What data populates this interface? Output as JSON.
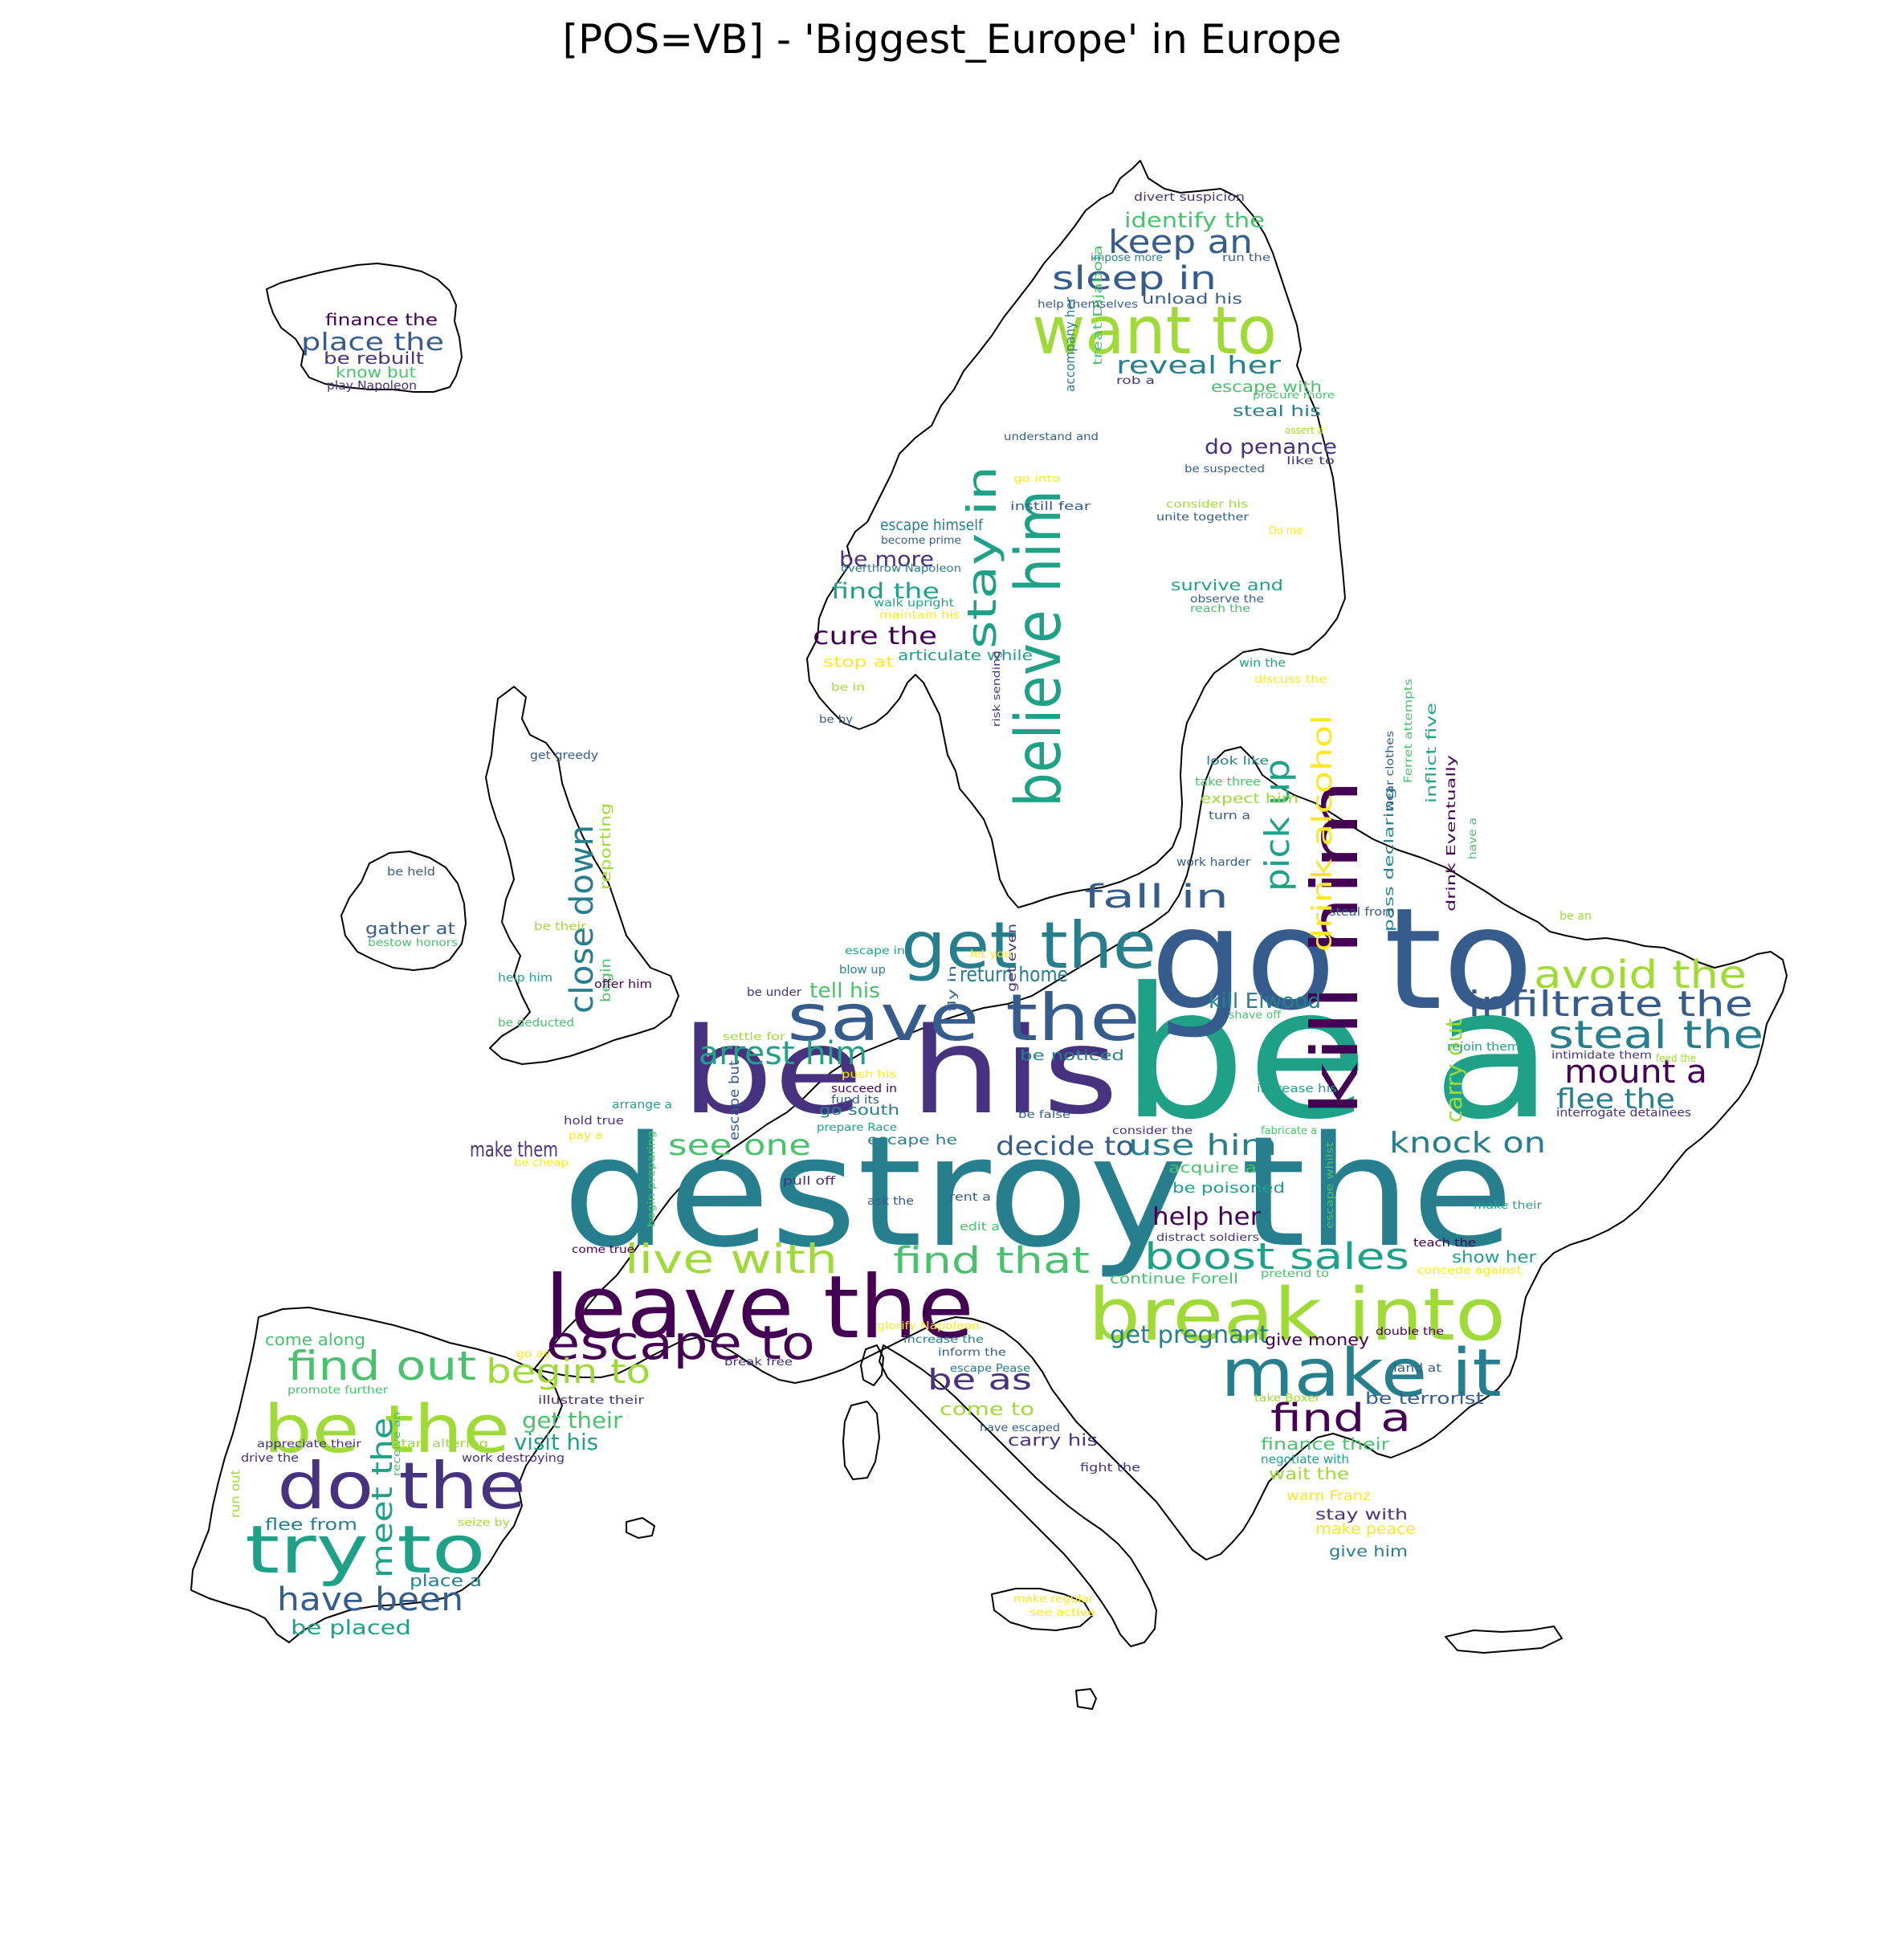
{
  "title": "[POS=VB] - 'Biggest_Europe' in Europe",
  "palette": [
    "#440154",
    "#46327e",
    "#365c8d",
    "#277f8e",
    "#1fa187",
    "#4ac16d",
    "#a0da39",
    "#fde725"
  ],
  "words": [
    {
      "text": "be a",
      "color": "#1fa187"
    },
    {
      "text": "destroy the",
      "color": "#277f8e"
    },
    {
      "text": "go to",
      "color": "#365c8d"
    },
    {
      "text": "be his",
      "color": "#46327e"
    },
    {
      "text": "leave the",
      "color": "#440154"
    },
    {
      "text": "break into",
      "color": "#a0da39"
    },
    {
      "text": "want to",
      "color": "#a0da39"
    },
    {
      "text": "believe him",
      "color": "#1fa187"
    },
    {
      "text": "save the",
      "color": "#365c8d"
    },
    {
      "text": "get the",
      "color": "#277f8e"
    },
    {
      "text": "kill him",
      "color": "#440154"
    },
    {
      "text": "make it",
      "color": "#277f8e"
    },
    {
      "text": "be the",
      "color": "#a0da39"
    },
    {
      "text": "do the",
      "color": "#46327e"
    },
    {
      "text": "try to",
      "color": "#1fa187"
    },
    {
      "text": "escape to",
      "color": "#440154"
    },
    {
      "text": "stay in",
      "color": "#1fa187"
    },
    {
      "text": "boost sales",
      "color": "#1fa187"
    },
    {
      "text": "live with",
      "color": "#a0da39"
    },
    {
      "text": "find that",
      "color": "#4ac16d"
    },
    {
      "text": "avoid the",
      "color": "#a0da39"
    },
    {
      "text": "infiltrate the",
      "color": "#365c8d"
    },
    {
      "text": "steal the",
      "color": "#277f8e"
    },
    {
      "text": "find out",
      "color": "#4ac16d"
    },
    {
      "text": "begin to",
      "color": "#a0da39"
    },
    {
      "text": "find a",
      "color": "#440154"
    },
    {
      "text": "pick up",
      "color": "#1fa187"
    },
    {
      "text": "drink alcohol",
      "color": "#fde725"
    },
    {
      "text": "close down",
      "color": "#277f8e"
    },
    {
      "text": "keep an",
      "color": "#365c8d"
    },
    {
      "text": "sleep in",
      "color": "#365c8d"
    },
    {
      "text": "arrest him",
      "color": "#1fa187"
    },
    {
      "text": "fall in",
      "color": "#365c8d"
    },
    {
      "text": "have been",
      "color": "#365c8d"
    },
    {
      "text": "meet the",
      "color": "#1fa187"
    },
    {
      "text": "mount a",
      "color": "#440154"
    },
    {
      "text": "flee the",
      "color": "#277f8e"
    },
    {
      "text": "knock on",
      "color": "#277f8e"
    },
    {
      "text": "use him",
      "color": "#277f8e"
    },
    {
      "text": "see one",
      "color": "#4ac16d"
    },
    {
      "text": "decide to",
      "color": "#365c8d"
    },
    {
      "text": "carry out",
      "color": "#a0da39"
    },
    {
      "text": "get pregnant",
      "color": "#277f8e"
    },
    {
      "text": "be as",
      "color": "#46327e"
    },
    {
      "text": "get their",
      "color": "#4ac16d"
    },
    {
      "text": "visit his",
      "color": "#1fa187"
    },
    {
      "text": "help her",
      "color": "#440154"
    },
    {
      "text": "kill Elwood",
      "color": "#277f8e"
    },
    {
      "text": "return home",
      "color": "#277f8e"
    },
    {
      "text": "tell his",
      "color": "#4ac16d"
    },
    {
      "text": "make them",
      "color": "#46327e"
    },
    {
      "text": "reveal her",
      "color": "#277f8e"
    },
    {
      "text": "identify the",
      "color": "#4ac16d"
    },
    {
      "text": "cure the",
      "color": "#440154"
    },
    {
      "text": "find the",
      "color": "#1fa187"
    },
    {
      "text": "be more",
      "color": "#46327e"
    },
    {
      "text": "do penance",
      "color": "#46327e"
    },
    {
      "text": "escape himself",
      "color": "#277f8e"
    },
    {
      "text": "place the",
      "color": "#365c8d"
    },
    {
      "text": "finance the",
      "color": "#440154"
    },
    {
      "text": "be rebuilt",
      "color": "#46327e"
    },
    {
      "text": "know but",
      "color": "#4ac16d"
    },
    {
      "text": "play Napoleon",
      "color": "#46327e"
    },
    {
      "text": "be placed",
      "color": "#1fa187"
    },
    {
      "text": "come along",
      "color": "#4ac16d"
    },
    {
      "text": "flee from",
      "color": "#277f8e"
    },
    {
      "text": "place a",
      "color": "#277f8e"
    },
    {
      "text": "come to",
      "color": "#a0da39"
    },
    {
      "text": "carry his",
      "color": "#46327e"
    },
    {
      "text": "give money",
      "color": "#440154"
    },
    {
      "text": "be terrorist",
      "color": "#365c8d"
    },
    {
      "text": "finance their",
      "color": "#4ac16d"
    },
    {
      "text": "wait the",
      "color": "#a0da39"
    },
    {
      "text": "stay with",
      "color": "#46327e"
    },
    {
      "text": "make peace",
      "color": "#fde725"
    },
    {
      "text": "give him",
      "color": "#277f8e"
    },
    {
      "text": "show her",
      "color": "#1fa187"
    },
    {
      "text": "gather at",
      "color": "#365c8d"
    },
    {
      "text": "be noticed",
      "color": "#277f8e"
    },
    {
      "text": "acquire a",
      "color": "#4ac16d"
    },
    {
      "text": "be poisoned",
      "color": "#1fa187"
    },
    {
      "text": "go south",
      "color": "#277f8e"
    },
    {
      "text": "continue Forell",
      "color": "#4ac16d"
    },
    {
      "text": "survive and",
      "color": "#1fa187"
    },
    {
      "text": "articulate while",
      "color": "#1fa187"
    },
    {
      "text": "steal his",
      "color": "#277f8e"
    },
    {
      "text": "escape with",
      "color": "#4ac16d"
    },
    {
      "text": "unload his",
      "color": "#365c8d"
    },
    {
      "text": "stop at",
      "color": "#fde725"
    },
    {
      "text": "warn Franz",
      "color": "#fde725"
    },
    {
      "text": "negotiate with",
      "color": "#1fa187"
    },
    {
      "text": "escape he",
      "color": "#277f8e"
    },
    {
      "text": "accompany her",
      "color": "#277f8e"
    },
    {
      "text": "treat Dijabola",
      "color": "#4ac16d"
    },
    {
      "text": "reporting",
      "color": "#a0da39"
    },
    {
      "text": "begin",
      "color": "#4ac16d"
    },
    {
      "text": "escape but",
      "color": "#365c8d"
    },
    {
      "text": "get even",
      "color": "#46327e"
    },
    {
      "text": "pass declaring",
      "color": "#277f8e"
    },
    {
      "text": "drink Eventually",
      "color": "#440154"
    },
    {
      "text": "inflict five",
      "color": "#1fa187"
    },
    {
      "text": "receive an",
      "color": "#4ac16d"
    },
    {
      "text": "run out",
      "color": "#a0da39"
    },
    {
      "text": "risk sending",
      "color": "#46327e"
    },
    {
      "text": "divert suspicion",
      "color": "#46327e"
    },
    {
      "text": "impose more",
      "color": "#277f8e"
    },
    {
      "text": "run the",
      "color": "#365c8d"
    },
    {
      "text": "help themselves",
      "color": "#365c8d"
    },
    {
      "text": "rob a",
      "color": "#46327e"
    },
    {
      "text": "procure more",
      "color": "#4ac16d"
    },
    {
      "text": "assert a",
      "color": "#a0da39"
    },
    {
      "text": "understand and",
      "color": "#365c8d"
    },
    {
      "text": "like to",
      "color": "#46327e"
    },
    {
      "text": "be suspected",
      "color": "#365c8d"
    },
    {
      "text": "go into",
      "color": "#fde725"
    },
    {
      "text": "instill fear",
      "color": "#365c8d"
    },
    {
      "text": "consider his",
      "color": "#a0da39"
    },
    {
      "text": "unite together",
      "color": "#365c8d"
    },
    {
      "text": "become prime",
      "color": "#365c8d"
    },
    {
      "text": "Do me",
      "color": "#fde725"
    },
    {
      "text": "overthrow Napoleon",
      "color": "#277f8e"
    },
    {
      "text": "walk upright",
      "color": "#1fa187"
    },
    {
      "text": "maintain his",
      "color": "#fde725"
    },
    {
      "text": "observe the",
      "color": "#365c8d"
    },
    {
      "text": "reach the",
      "color": "#4ac16d"
    },
    {
      "text": "win the",
      "color": "#1fa187"
    },
    {
      "text": "discuss the",
      "color": "#fde725"
    },
    {
      "text": "be in",
      "color": "#a0da39"
    },
    {
      "text": "be by",
      "color": "#365c8d"
    },
    {
      "text": "get greedy",
      "color": "#365c8d"
    },
    {
      "text": "look like",
      "color": "#277f8e"
    },
    {
      "text": "take three",
      "color": "#4ac16d"
    },
    {
      "text": "expect him",
      "color": "#a0da39"
    },
    {
      "text": "turn a",
      "color": "#365c8d"
    },
    {
      "text": "work harder",
      "color": "#365c8d"
    },
    {
      "text": "Ferret attempts",
      "color": "#4ac16d"
    },
    {
      "text": "wear clothes",
      "color": "#365c8d"
    },
    {
      "text": "have a",
      "color": "#4ac16d"
    },
    {
      "text": "steal from",
      "color": "#365c8d"
    },
    {
      "text": "be an",
      "color": "#a0da39"
    },
    {
      "text": "be held",
      "color": "#365c8d"
    },
    {
      "text": "be their",
      "color": "#a0da39"
    },
    {
      "text": "bestow honors",
      "color": "#4ac16d"
    },
    {
      "text": "help him",
      "color": "#1fa187"
    },
    {
      "text": "offer him",
      "color": "#440154"
    },
    {
      "text": "be deducted",
      "color": "#4ac16d"
    },
    {
      "text": "escape in",
      "color": "#1fa187"
    },
    {
      "text": "let you",
      "color": "#fde725"
    },
    {
      "text": "blow up",
      "color": "#277f8e"
    },
    {
      "text": "be under",
      "color": "#46327e"
    },
    {
      "text": "fly in",
      "color": "#365c8d"
    },
    {
      "text": "shave off",
      "color": "#4ac16d"
    },
    {
      "text": "rejoin them",
      "color": "#1fa187"
    },
    {
      "text": "intimidate them",
      "color": "#46327e"
    },
    {
      "text": "feed the",
      "color": "#a0da39"
    },
    {
      "text": "interrogate detainees",
      "color": "#46327e"
    },
    {
      "text": "settle for",
      "color": "#a0da39"
    },
    {
      "text": "push his",
      "color": "#fde725"
    },
    {
      "text": "succeed in",
      "color": "#440154"
    },
    {
      "text": "fund its",
      "color": "#365c8d"
    },
    {
      "text": "prepare Race",
      "color": "#1fa187"
    },
    {
      "text": "be false",
      "color": "#365c8d"
    },
    {
      "text": "increase his",
      "color": "#1fa187"
    },
    {
      "text": "consider the",
      "color": "#46327e"
    },
    {
      "text": "fabricate a",
      "color": "#4ac16d"
    },
    {
      "text": "hold true",
      "color": "#46327e"
    },
    {
      "text": "arrange a",
      "color": "#1fa187"
    },
    {
      "text": "pay a",
      "color": "#fde725"
    },
    {
      "text": "be cheap",
      "color": "#fde725"
    },
    {
      "text": "begin preparing",
      "color": "#4ac16d"
    },
    {
      "text": "pull off",
      "color": "#46327e"
    },
    {
      "text": "ask the",
      "color": "#365c8d"
    },
    {
      "text": "rent a",
      "color": "#365c8d"
    },
    {
      "text": "edit a",
      "color": "#4ac16d"
    },
    {
      "text": "distract soldiers",
      "color": "#46327e"
    },
    {
      "text": "escape whilst",
      "color": "#4ac16d"
    },
    {
      "text": "make their",
      "color": "#1fa187"
    },
    {
      "text": "teach the",
      "color": "#440154"
    },
    {
      "text": "pretend to",
      "color": "#4ac16d"
    },
    {
      "text": "concede against",
      "color": "#fde725"
    },
    {
      "text": "come true",
      "color": "#440154"
    },
    {
      "text": "glorify Napoleon",
      "color": "#fde725"
    },
    {
      "text": "increase the",
      "color": "#277f8e"
    },
    {
      "text": "inform the",
      "color": "#365c8d"
    },
    {
      "text": "escape Pease",
      "color": "#277f8e"
    },
    {
      "text": "break free",
      "color": "#46327e"
    },
    {
      "text": "go as",
      "color": "#fde725"
    },
    {
      "text": "double the",
      "color": "#440154"
    },
    {
      "text": "land at",
      "color": "#365c8d"
    },
    {
      "text": "take Boxer",
      "color": "#a0da39"
    },
    {
      "text": "have escaped",
      "color": "#365c8d"
    },
    {
      "text": "fight the",
      "color": "#46327e"
    },
    {
      "text": "promote further",
      "color": "#4ac16d"
    },
    {
      "text": "illustrate their",
      "color": "#46327e"
    },
    {
      "text": "appreciate their",
      "color": "#46327e"
    },
    {
      "text": "start altering",
      "color": "#a0da39"
    },
    {
      "text": "drive the",
      "color": "#46327e"
    },
    {
      "text": "work destroying",
      "color": "#46327e"
    },
    {
      "text": "seize by",
      "color": "#a0da39"
    },
    {
      "text": "make regular",
      "color": "#fde725"
    },
    {
      "text": "see active",
      "color": "#fde725"
    }
  ]
}
